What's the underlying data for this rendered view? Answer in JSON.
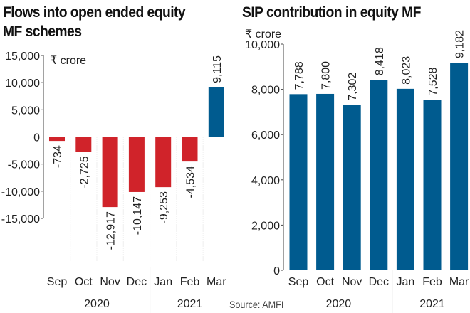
{
  "chart_data": [
    {
      "type": "bar",
      "title": "Flows into open ended equity MF schemes",
      "unit_label": "₹ crore",
      "categories": [
        "Sep",
        "Oct",
        "Nov",
        "Dec",
        "Jan",
        "Feb",
        "Mar"
      ],
      "year_groups": [
        {
          "label": "2020",
          "months": [
            "Sep",
            "Oct",
            "Nov",
            "Dec"
          ]
        },
        {
          "label": "2021",
          "months": [
            "Jan",
            "Feb",
            "Mar"
          ]
        }
      ],
      "values": [
        -734,
        -2725,
        -12917,
        -10147,
        -9253,
        -4534,
        9115
      ],
      "data_labels": [
        "-734",
        "-2,725",
        "-12,917",
        "-10,147",
        "-9,253",
        "-4,534",
        "9,115"
      ],
      "ylim": [
        -15000,
        15000
      ],
      "yticks": [
        15000,
        10000,
        5000,
        0,
        -5000,
        -10000,
        -15000
      ],
      "ytick_labels": [
        "15,000",
        "10,000",
        "5,000",
        "0",
        "-5,000",
        "-10,000",
        "-15,000"
      ],
      "colors": {
        "negative": "#d0232a",
        "positive": "#005b8f"
      },
      "grid": false
    },
    {
      "type": "bar",
      "title": "SIP contribution in equity MF",
      "unit_label": "₹ crore",
      "categories": [
        "Sep",
        "Oct",
        "Nov",
        "Dec",
        "Jan",
        "Feb",
        "Mar"
      ],
      "year_groups": [
        {
          "label": "2020",
          "months": [
            "Sep",
            "Oct",
            "Nov",
            "Dec"
          ]
        },
        {
          "label": "2021",
          "months": [
            "Jan",
            "Feb",
            "Mar"
          ]
        }
      ],
      "values": [
        7788,
        7800,
        7302,
        8418,
        8023,
        7528,
        9182
      ],
      "data_labels": [
        "7,788",
        "7,800",
        "7,302",
        "8,418",
        "8,023",
        "7,528",
        "9,182"
      ],
      "ylim": [
        0,
        10000
      ],
      "yticks": [
        10000,
        8000,
        6000,
        4000,
        2000,
        0
      ],
      "ytick_labels": [
        "10,000",
        "8,000",
        "6,000",
        "4,000",
        "2,000",
        "0"
      ],
      "colors": {
        "bar": "#005b8f"
      },
      "grid": false
    }
  ],
  "source": "Source: AMFI"
}
